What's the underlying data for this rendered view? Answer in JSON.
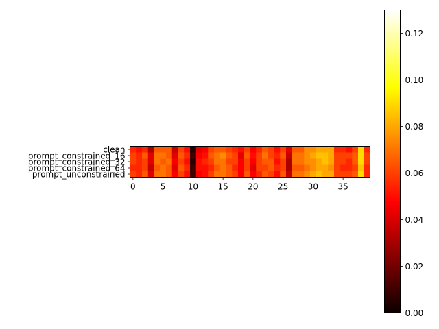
{
  "chart_data": {
    "type": "heatmap",
    "colormap": "hot",
    "rows": [
      "clean",
      "prompt_constrained_16",
      "prompt_constrained_32",
      "prompt_constrained_64",
      "prompt_unconstrained"
    ],
    "x_ticks": [
      0,
      5,
      10,
      15,
      20,
      25,
      30,
      35
    ],
    "x_range": [
      0,
      39
    ],
    "colorbar": {
      "range": [
        0,
        0.13
      ],
      "ticks": [
        0.0,
        0.02,
        0.04,
        0.06,
        0.08,
        0.1,
        0.12
      ],
      "tick_labels": [
        "0.00",
        "0.02",
        "0.04",
        "0.06",
        "0.08",
        "0.10",
        "0.12"
      ]
    },
    "values": [
      [
        0.055,
        0.05,
        0.055,
        0.03,
        0.065,
        0.065,
        0.065,
        0.035,
        0.06,
        0.05,
        0.005,
        0.04,
        0.045,
        0.06,
        0.065,
        0.065,
        0.06,
        0.055,
        0.05,
        0.06,
        0.045,
        0.055,
        0.065,
        0.06,
        0.05,
        0.06,
        0.04,
        0.065,
        0.065,
        0.075,
        0.075,
        0.08,
        0.08,
        0.08,
        0.055,
        0.055,
        0.05,
        0.06,
        0.09,
        0.055
      ],
      [
        0.06,
        0.055,
        0.065,
        0.04,
        0.07,
        0.07,
        0.065,
        0.04,
        0.065,
        0.055,
        0.01,
        0.045,
        0.05,
        0.065,
        0.07,
        0.075,
        0.065,
        0.06,
        0.04,
        0.065,
        0.05,
        0.06,
        0.07,
        0.06,
        0.055,
        0.065,
        0.035,
        0.07,
        0.07,
        0.075,
        0.08,
        0.085,
        0.085,
        0.08,
        0.06,
        0.06,
        0.06,
        0.065,
        0.09,
        0.06
      ],
      [
        0.06,
        0.055,
        0.06,
        0.04,
        0.07,
        0.065,
        0.07,
        0.045,
        0.06,
        0.05,
        0.005,
        0.05,
        0.055,
        0.06,
        0.07,
        0.07,
        0.06,
        0.06,
        0.045,
        0.06,
        0.045,
        0.06,
        0.065,
        0.065,
        0.05,
        0.06,
        0.03,
        0.07,
        0.07,
        0.075,
        0.075,
        0.08,
        0.085,
        0.08,
        0.06,
        0.06,
        0.055,
        0.065,
        0.09,
        0.06
      ],
      [
        0.055,
        0.055,
        0.06,
        0.035,
        0.065,
        0.07,
        0.065,
        0.04,
        0.065,
        0.055,
        0.01,
        0.05,
        0.05,
        0.055,
        0.065,
        0.07,
        0.065,
        0.055,
        0.045,
        0.06,
        0.04,
        0.06,
        0.06,
        0.065,
        0.055,
        0.06,
        0.03,
        0.065,
        0.065,
        0.07,
        0.075,
        0.08,
        0.08,
        0.075,
        0.06,
        0.055,
        0.055,
        0.06,
        0.085,
        0.055
      ],
      [
        0.06,
        0.055,
        0.065,
        0.04,
        0.07,
        0.07,
        0.065,
        0.045,
        0.06,
        0.05,
        0.01,
        0.045,
        0.05,
        0.06,
        0.07,
        0.07,
        0.065,
        0.06,
        0.045,
        0.065,
        0.045,
        0.055,
        0.065,
        0.06,
        0.05,
        0.065,
        0.035,
        0.07,
        0.07,
        0.075,
        0.08,
        0.085,
        0.08,
        0.08,
        0.06,
        0.06,
        0.06,
        0.065,
        0.09,
        0.055
      ]
    ]
  }
}
